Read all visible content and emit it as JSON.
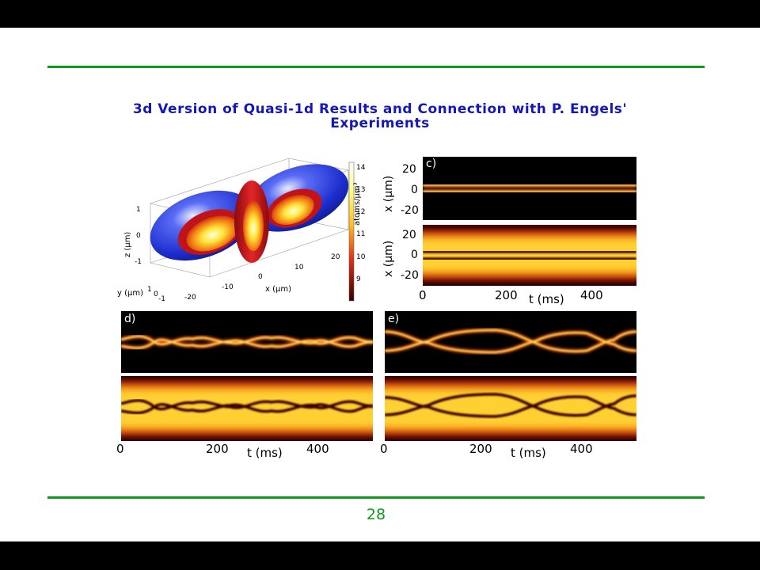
{
  "slide": {
    "title_line1": "3d Version of Quasi-1d Results and Connection with P. Engels'",
    "title_line2": "Experiments",
    "page_number": "28"
  },
  "figure": {
    "panel_3d": {
      "x_axis_label": "x (μm)",
      "y_axis_label": "y (μm)",
      "z_axis_label": "z (μm)",
      "x_ticks": [
        "-20",
        "-10",
        "0",
        "10",
        "20"
      ],
      "y_ticks": [
        "1",
        "0",
        "-1"
      ],
      "z_ticks": [
        "1",
        "0",
        "-1"
      ],
      "colorbar_label": "atoms/μm³",
      "colorbar_ticks": [
        "14",
        "13",
        "12",
        "11",
        "10",
        "9"
      ],
      "colors": {
        "outer_isosurface": "#2236d8",
        "inner_isosurface": "#c0141a"
      }
    },
    "panel_c": {
      "label": "c)",
      "ylabel_top": "x (μm)",
      "ylabel_bottom": "x (μm)",
      "yticks_top": [
        "20",
        "0",
        "-20"
      ],
      "yticks_bottom": [
        "20",
        "0",
        "-20"
      ],
      "xticks": [
        "0",
        "200",
        "400"
      ],
      "xlabel": "t (ms)"
    },
    "panel_d": {
      "label": "d)",
      "xticks": [
        "0",
        "200",
        "400"
      ],
      "xlabel": "t (ms)"
    },
    "panel_e": {
      "label": "e)",
      "xticks": [
        "0",
        "200",
        "400"
      ],
      "xlabel": "t (ms)"
    }
  }
}
